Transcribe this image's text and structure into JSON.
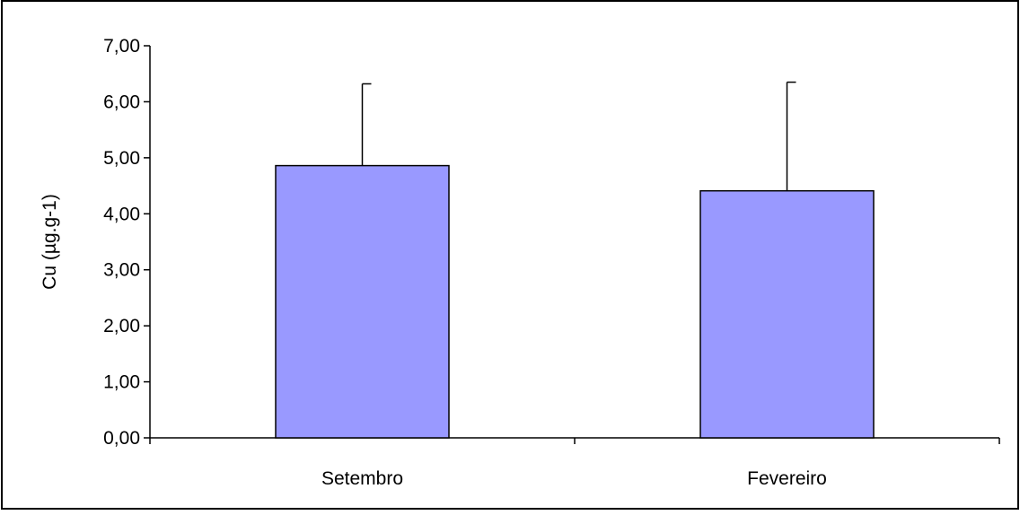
{
  "chart_data": {
    "type": "bar",
    "categories": [
      "Setembro",
      "Fevereiro"
    ],
    "values": [
      4.86,
      4.41
    ],
    "error_upper": [
      6.32,
      6.35
    ],
    "ylabel": "Cu (µg.g-1)",
    "xlabel": "",
    "ylim": [
      0,
      7
    ],
    "yticks": [
      "0,00",
      "1,00",
      "2,00",
      "3,00",
      "4,00",
      "5,00",
      "6,00",
      "7,00"
    ],
    "grid": false,
    "legend": "none",
    "bar_color": "#9999ff",
    "bar_edge_color": "#000000"
  }
}
